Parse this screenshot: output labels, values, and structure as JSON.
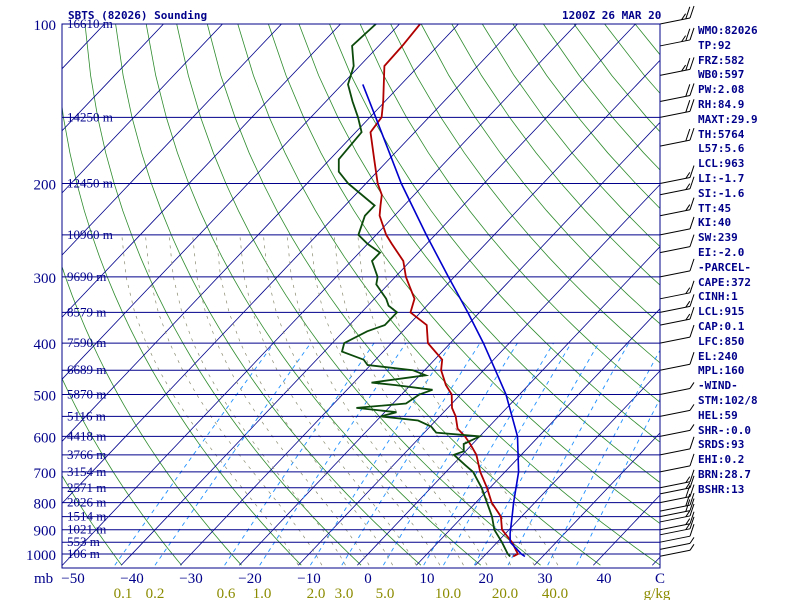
{
  "header": {
    "station": "SBTS (82026) Sounding",
    "time": "1200Z 26 MAR 20"
  },
  "stats": [
    "WMO:82026",
    "TP:92",
    "FRZ:582",
    "WB0:597",
    "PW:2.08",
    "RH:84.9",
    "MAXT:29.9",
    "TH:5764",
    "L57:5.6",
    "LCL:963",
    "LI:-1.7",
    "SI:-1.6",
    "TT:45",
    "KI:40",
    "SW:239",
    "EI:-2.0",
    "-PARCEL-",
    "CAPE:372",
    "CINH:1",
    "LCL:915",
    "CAP:0.1",
    "LFC:850",
    "EL:240",
    "MPL:160",
    "-WIND-",
    "STM:102/8",
    "HEL:59",
    "SHR-:0.0",
    "SRDS:93",
    "EHI:0.2",
    "BRN:28.7",
    "BSHR:13"
  ],
  "colors": {
    "isobar": "#00008b",
    "isotherm": "#00008b",
    "dry_adiabat": "#2e8b2e",
    "mixing_ratio": "#1e90ff",
    "temperature": "#b00000",
    "dewpoint": "#0b4a0b",
    "parcel": "#0000cc",
    "axis_text": "#00008b",
    "mixing_label": "#8b8b00"
  },
  "chart_data": {
    "type": "line",
    "title": "SBTS (82026) Sounding",
    "xlabel": "C",
    "ylabel": "mb",
    "x_ticks": [
      -50,
      -40,
      -30,
      -20,
      -10,
      0,
      10,
      20,
      30,
      40
    ],
    "p_ticks": [
      100,
      200,
      300,
      400,
      500,
      600,
      700,
      800,
      900,
      1000
    ],
    "height_labels": [
      {
        "p": 100,
        "h": "16610 m"
      },
      {
        "p": 150,
        "h": "14250 m"
      },
      {
        "p": 200,
        "h": "12450 m"
      },
      {
        "p": 250,
        "h": "10960 m"
      },
      {
        "p": 300,
        "h": "9690 m"
      },
      {
        "p": 350,
        "h": "8579 m"
      },
      {
        "p": 400,
        "h": "7590 m"
      },
      {
        "p": 450,
        "h": "6689 m"
      },
      {
        "p": 500,
        "h": "5870 m"
      },
      {
        "p": 550,
        "h": "5116 m"
      },
      {
        "p": 600,
        "h": "4418 m"
      },
      {
        "p": 650,
        "h": "3766 m"
      },
      {
        "p": 700,
        "h": "3154 m"
      },
      {
        "p": 750,
        "h": "2571 m"
      },
      {
        "p": 800,
        "h": "2026 m"
      },
      {
        "p": 850,
        "h": "1514 m"
      },
      {
        "p": 900,
        "h": "1021 m"
      },
      {
        "p": 950,
        "h": "553 m"
      },
      {
        "p": 1000,
        "h": "106 m"
      }
    ],
    "mixing_ratio_labels": [
      "0.1",
      "0.2",
      "0.6",
      "1.0",
      "2.0",
      "3.0",
      "5.0",
      "10.0",
      "20.0",
      "40.0",
      "g/kg"
    ],
    "series": [
      {
        "name": "temperature",
        "points": [
          [
            1011,
            25
          ],
          [
            1000,
            25.4
          ],
          [
            950,
            22.5
          ],
          [
            900,
            18.8
          ],
          [
            850,
            16.5
          ],
          [
            800,
            12.7
          ],
          [
            750,
            9.5
          ],
          [
            700,
            5.8
          ],
          [
            650,
            2.4
          ],
          [
            620,
            -0.4
          ],
          [
            600,
            -2.5
          ],
          [
            580,
            -5
          ],
          [
            550,
            -7.3
          ],
          [
            530,
            -9.3
          ],
          [
            500,
            -11.5
          ],
          [
            480,
            -14
          ],
          [
            450,
            -17.2
          ],
          [
            430,
            -18.7
          ],
          [
            400,
            -23.8
          ],
          [
            370,
            -26.9
          ],
          [
            350,
            -31.7
          ],
          [
            330,
            -33.2
          ],
          [
            300,
            -38.2
          ],
          [
            280,
            -41.2
          ],
          [
            260,
            -45.9
          ],
          [
            250,
            -48.3
          ],
          [
            230,
            -52.5
          ],
          [
            220,
            -54
          ],
          [
            210,
            -55.5
          ],
          [
            200,
            -58
          ],
          [
            180,
            -62.5
          ],
          [
            160,
            -67.5
          ],
          [
            150,
            -68
          ],
          [
            140,
            -70.3
          ],
          [
            120,
            -75.8
          ],
          [
            110,
            -76
          ],
          [
            100,
            -76.5
          ]
        ]
      },
      {
        "name": "dewpoint",
        "points": [
          [
            1011,
            24.5
          ],
          [
            1000,
            23.7
          ],
          [
            950,
            20.8
          ],
          [
            900,
            17.5
          ],
          [
            850,
            15
          ],
          [
            800,
            11.9
          ],
          [
            750,
            8.6
          ],
          [
            700,
            4.6
          ],
          [
            680,
            2.2
          ],
          [
            650,
            -1.4
          ],
          [
            640,
            -0.3
          ],
          [
            620,
            -1.5
          ],
          [
            600,
            0
          ],
          [
            590,
            -8
          ],
          [
            575,
            -9.8
          ],
          [
            560,
            -13
          ],
          [
            550,
            -20
          ],
          [
            540,
            -18
          ],
          [
            530,
            -25.5
          ],
          [
            520,
            -17.8
          ],
          [
            500,
            -17
          ],
          [
            490,
            -15.5
          ],
          [
            480,
            -22.5
          ],
          [
            475,
            -27
          ],
          [
            460,
            -19
          ],
          [
            450,
            -22
          ],
          [
            440,
            -30.5
          ],
          [
            430,
            -32
          ],
          [
            415,
            -37
          ],
          [
            400,
            -38
          ],
          [
            380,
            -36
          ],
          [
            370,
            -34
          ],
          [
            350,
            -34
          ],
          [
            340,
            -36.5
          ],
          [
            330,
            -38
          ],
          [
            310,
            -42
          ],
          [
            300,
            -43
          ],
          [
            280,
            -46.5
          ],
          [
            270,
            -46.5
          ],
          [
            260,
            -50
          ],
          [
            250,
            -53
          ],
          [
            230,
            -55
          ],
          [
            220,
            -55
          ],
          [
            200,
            -63
          ],
          [
            190,
            -66.5
          ],
          [
            180,
            -68.5
          ],
          [
            160,
            -69
          ],
          [
            150,
            -72
          ],
          [
            140,
            -75.5
          ],
          [
            130,
            -79
          ],
          [
            120,
            -81
          ],
          [
            110,
            -84.5
          ],
          [
            100,
            -84
          ]
        ]
      },
      {
        "name": "parcel",
        "points": [
          [
            1011,
            27
          ],
          [
            1000,
            26
          ],
          [
            950,
            22.2
          ],
          [
            915,
            20.8
          ],
          [
            850,
            18.4
          ],
          [
            800,
            16.4
          ],
          [
            700,
            12.3
          ],
          [
            600,
            6.4
          ],
          [
            500,
            -2.3
          ],
          [
            450,
            -8
          ],
          [
            400,
            -14.4
          ],
          [
            350,
            -22
          ],
          [
            300,
            -31
          ],
          [
            250,
            -41.5
          ],
          [
            200,
            -54
          ],
          [
            150,
            -69
          ],
          [
            130,
            -76.5
          ]
        ]
      }
    ],
    "wind_barbs": [
      {
        "p": 1010,
        "spd": 5
      },
      {
        "p": 980,
        "spd": 5
      },
      {
        "p": 950,
        "spd": 10
      },
      {
        "p": 920,
        "spd": 15
      },
      {
        "p": 900,
        "spd": 15
      },
      {
        "p": 870,
        "spd": 15
      },
      {
        "p": 850,
        "spd": 20
      },
      {
        "p": 830,
        "spd": 20
      },
      {
        "p": 800,
        "spd": 20
      },
      {
        "p": 770,
        "spd": 15
      },
      {
        "p": 750,
        "spd": 15
      },
      {
        "p": 700,
        "spd": 10
      },
      {
        "p": 650,
        "spd": 10
      },
      {
        "p": 600,
        "spd": 5
      },
      {
        "p": 550,
        "spd": 5
      },
      {
        "p": 500,
        "spd": 5
      },
      {
        "p": 450,
        "spd": 10
      },
      {
        "p": 400,
        "spd": 10
      },
      {
        "p": 370,
        "spd": 15
      },
      {
        "p": 350,
        "spd": 15
      },
      {
        "p": 330,
        "spd": 15
      },
      {
        "p": 300,
        "spd": 10
      },
      {
        "p": 270,
        "spd": 10
      },
      {
        "p": 250,
        "spd": 10
      },
      {
        "p": 230,
        "spd": 15
      },
      {
        "p": 210,
        "spd": 15
      },
      {
        "p": 200,
        "spd": 15
      },
      {
        "p": 170,
        "spd": 20
      },
      {
        "p": 150,
        "spd": 20
      },
      {
        "p": 140,
        "spd": 20
      },
      {
        "p": 125,
        "spd": 25
      },
      {
        "p": 110,
        "spd": 25
      },
      {
        "p": 100,
        "spd": 25
      }
    ]
  }
}
